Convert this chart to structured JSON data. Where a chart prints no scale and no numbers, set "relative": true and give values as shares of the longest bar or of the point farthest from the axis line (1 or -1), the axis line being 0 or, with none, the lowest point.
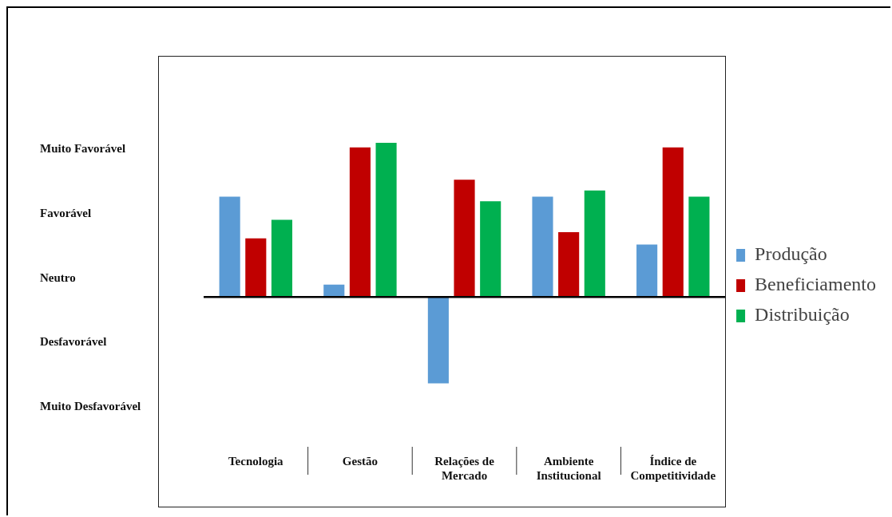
{
  "chart_data": {
    "type": "bar",
    "relative": true,
    "categories": [
      "Tecnologia",
      "Gestão",
      "Relações de Mercado",
      "Ambiente Institucional",
      "Índice de Competitividade"
    ],
    "series": [
      {
        "name": "Produção",
        "color": "#5b9bd5",
        "values": [
          0.65,
          0.08,
          -0.56,
          0.65,
          0.34
        ]
      },
      {
        "name": "Beneficiamento",
        "color": "#c00000",
        "values": [
          0.38,
          0.97,
          0.76,
          0.42,
          0.97
        ]
      },
      {
        "name": "Distribuição",
        "color": "#00b050",
        "values": [
          0.5,
          1,
          0.62,
          0.69,
          0.65
        ]
      }
    ],
    "annotations": [
      "Muito Favorável",
      "Favorável",
      "Neutro",
      "Desfavorável",
      "Muito Desfavorável"
    ],
    "legend": "right"
  }
}
